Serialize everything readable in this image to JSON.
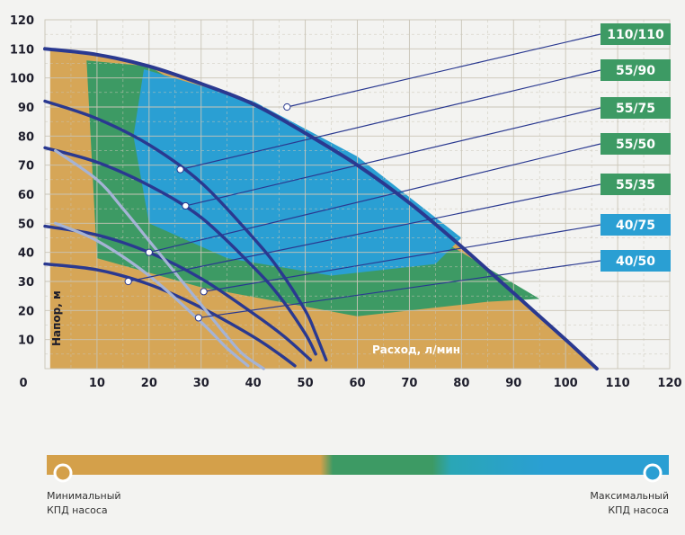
{
  "chart_data": {
    "type": "line",
    "xlabel": "Расход, л/мин",
    "ylabel": "Напор, м",
    "xlim": [
      0,
      120
    ],
    "ylim": [
      0,
      120
    ],
    "x_ticks": [
      0,
      10,
      20,
      30,
      40,
      50,
      60,
      70,
      80,
      90,
      100,
      110,
      120
    ],
    "y_ticks": [
      10,
      20,
      30,
      40,
      50,
      60,
      70,
      80,
      90,
      100,
      110,
      120
    ],
    "grid": true,
    "series": [
      {
        "name": "110/110",
        "color": "#2a3990",
        "marker": [
          46.5,
          90
        ],
        "x": [
          0,
          10,
          20,
          30,
          40,
          50,
          60,
          70,
          80,
          90,
          100,
          106
        ],
        "y": [
          110,
          108,
          104,
          98,
          91,
          81,
          70,
          57,
          42,
          26,
          10,
          0
        ]
      },
      {
        "name": "55/90",
        "color": "#2a3990",
        "marker": [
          26,
          68.5
        ],
        "x": [
          0,
          10,
          20,
          30,
          40,
          45,
          50,
          52,
          54
        ],
        "y": [
          92,
          86,
          77,
          64,
          45,
          34,
          20,
          12,
          3
        ]
      },
      {
        "name": "55/75",
        "color": "#2a3990",
        "marker": [
          27,
          56
        ],
        "x": [
          0,
          10,
          20,
          30,
          40,
          45,
          50,
          52
        ],
        "y": [
          76,
          71,
          63,
          52,
          35,
          25,
          12,
          5
        ]
      },
      {
        "name": "55/50",
        "color": "#2a3990",
        "marker": [
          20,
          40
        ],
        "x": [
          0,
          10,
          20,
          30,
          40,
          46,
          51
        ],
        "y": [
          49,
          46,
          40,
          31,
          19,
          11,
          3
        ]
      },
      {
        "name": "55/35",
        "color": "#2a3990",
        "marker": [
          16,
          30
        ],
        "x": [
          0,
          10,
          20,
          30,
          40,
          45,
          48
        ],
        "y": [
          36,
          34,
          29,
          21,
          11,
          5,
          1
        ]
      },
      {
        "name": "40/75",
        "color": "#a5b3d5",
        "marker": [
          30.5,
          26.5
        ],
        "x": [
          2,
          10,
          15,
          20,
          25,
          30,
          35,
          38,
          42
        ],
        "y": [
          75,
          65,
          55,
          44,
          33,
          22,
          11,
          5,
          0
        ]
      },
      {
        "name": "40/50",
        "color": "#a5b3d5",
        "marker": [
          29.5,
          17.5
        ],
        "x": [
          2,
          10,
          20,
          30,
          35,
          39
        ],
        "y": [
          50,
          44,
          32,
          16,
          7,
          1
        ]
      }
    ]
  },
  "legend": {
    "min_line1": "Минимальный",
    "min_line2": "КПД насоса",
    "max_line1": "Максимальный",
    "max_line2": "КПД насоса",
    "colors": [
      "#d4a04a",
      "#3d9a64",
      "#2a9fd3"
    ]
  }
}
